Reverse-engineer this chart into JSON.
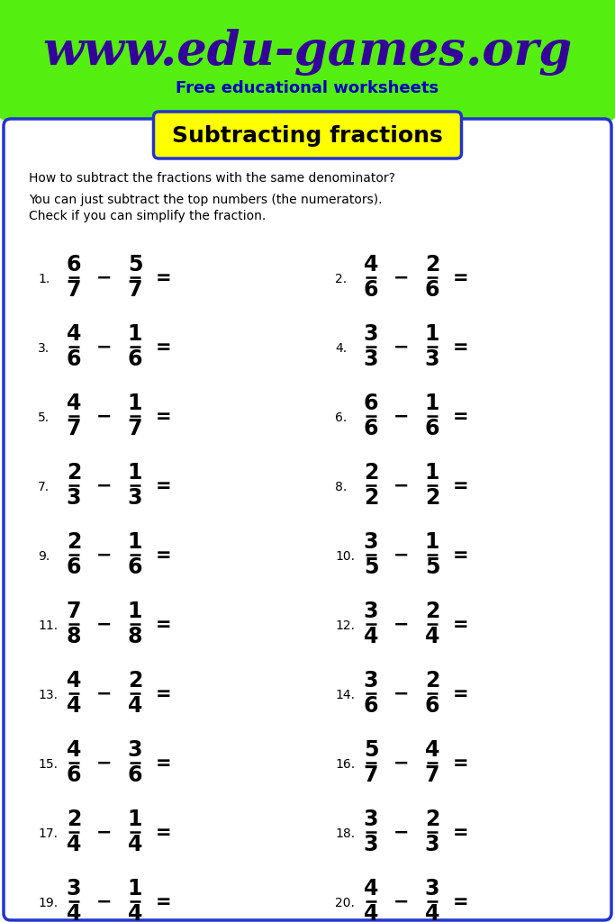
{
  "title_url": "www.edu-games.org",
  "title_sub": "Free educational worksheets",
  "header_bg": "#55ee11",
  "title_url_color": "#330099",
  "title_sub_color": "#0000bb",
  "worksheet_title": "Subtracting fractions",
  "worksheet_title_bg": "#ffff00",
  "worksheet_title_color": "#000000",
  "border_color": "#2233cc",
  "instructions_line1": "How to subtract the fractions with the same denominator?",
  "instructions_line2": "You can just subtract the top numbers (the numerators).",
  "instructions_line3": "Check if you can simplify the fraction.",
  "problems": [
    {
      "num": "1",
      "n1": "6",
      "d1": "7",
      "n2": "5",
      "d2": "7"
    },
    {
      "num": "2",
      "n1": "4",
      "d1": "6",
      "n2": "2",
      "d2": "6"
    },
    {
      "num": "3",
      "n1": "4",
      "d1": "6",
      "n2": "1",
      "d2": "6"
    },
    {
      "num": "4",
      "n1": "3",
      "d1": "3",
      "n2": "1",
      "d2": "3"
    },
    {
      "num": "5",
      "n1": "4",
      "d1": "7",
      "n2": "1",
      "d2": "7"
    },
    {
      "num": "6",
      "n1": "6",
      "d1": "6",
      "n2": "1",
      "d2": "6"
    },
    {
      "num": "7",
      "n1": "2",
      "d1": "3",
      "n2": "1",
      "d2": "3"
    },
    {
      "num": "8",
      "n1": "2",
      "d1": "2",
      "n2": "1",
      "d2": "2"
    },
    {
      "num": "9",
      "n1": "2",
      "d1": "6",
      "n2": "1",
      "d2": "6"
    },
    {
      "num": "10",
      "n1": "3",
      "d1": "5",
      "n2": "1",
      "d2": "5"
    },
    {
      "num": "11",
      "n1": "7",
      "d1": "8",
      "n2": "1",
      "d2": "8"
    },
    {
      "num": "12",
      "n1": "3",
      "d1": "4",
      "n2": "2",
      "d2": "4"
    },
    {
      "num": "13",
      "n1": "4",
      "d1": "4",
      "n2": "2",
      "d2": "4"
    },
    {
      "num": "14",
      "n1": "3",
      "d1": "6",
      "n2": "2",
      "d2": "6"
    },
    {
      "num": "15",
      "n1": "4",
      "d1": "6",
      "n2": "3",
      "d2": "6"
    },
    {
      "num": "16",
      "n1": "5",
      "d1": "7",
      "n2": "4",
      "d2": "7"
    },
    {
      "num": "17",
      "n1": "2",
      "d1": "4",
      "n2": "1",
      "d2": "4"
    },
    {
      "num": "18",
      "n1": "3",
      "d1": "3",
      "n2": "2",
      "d2": "3"
    },
    {
      "num": "19",
      "n1": "3",
      "d1": "4",
      "n2": "1",
      "d2": "4"
    },
    {
      "num": "20",
      "n1": "4",
      "d1": "4",
      "n2": "3",
      "d2": "4"
    }
  ],
  "fig_width": 6.83,
  "fig_height": 10.24,
  "dpi": 100
}
